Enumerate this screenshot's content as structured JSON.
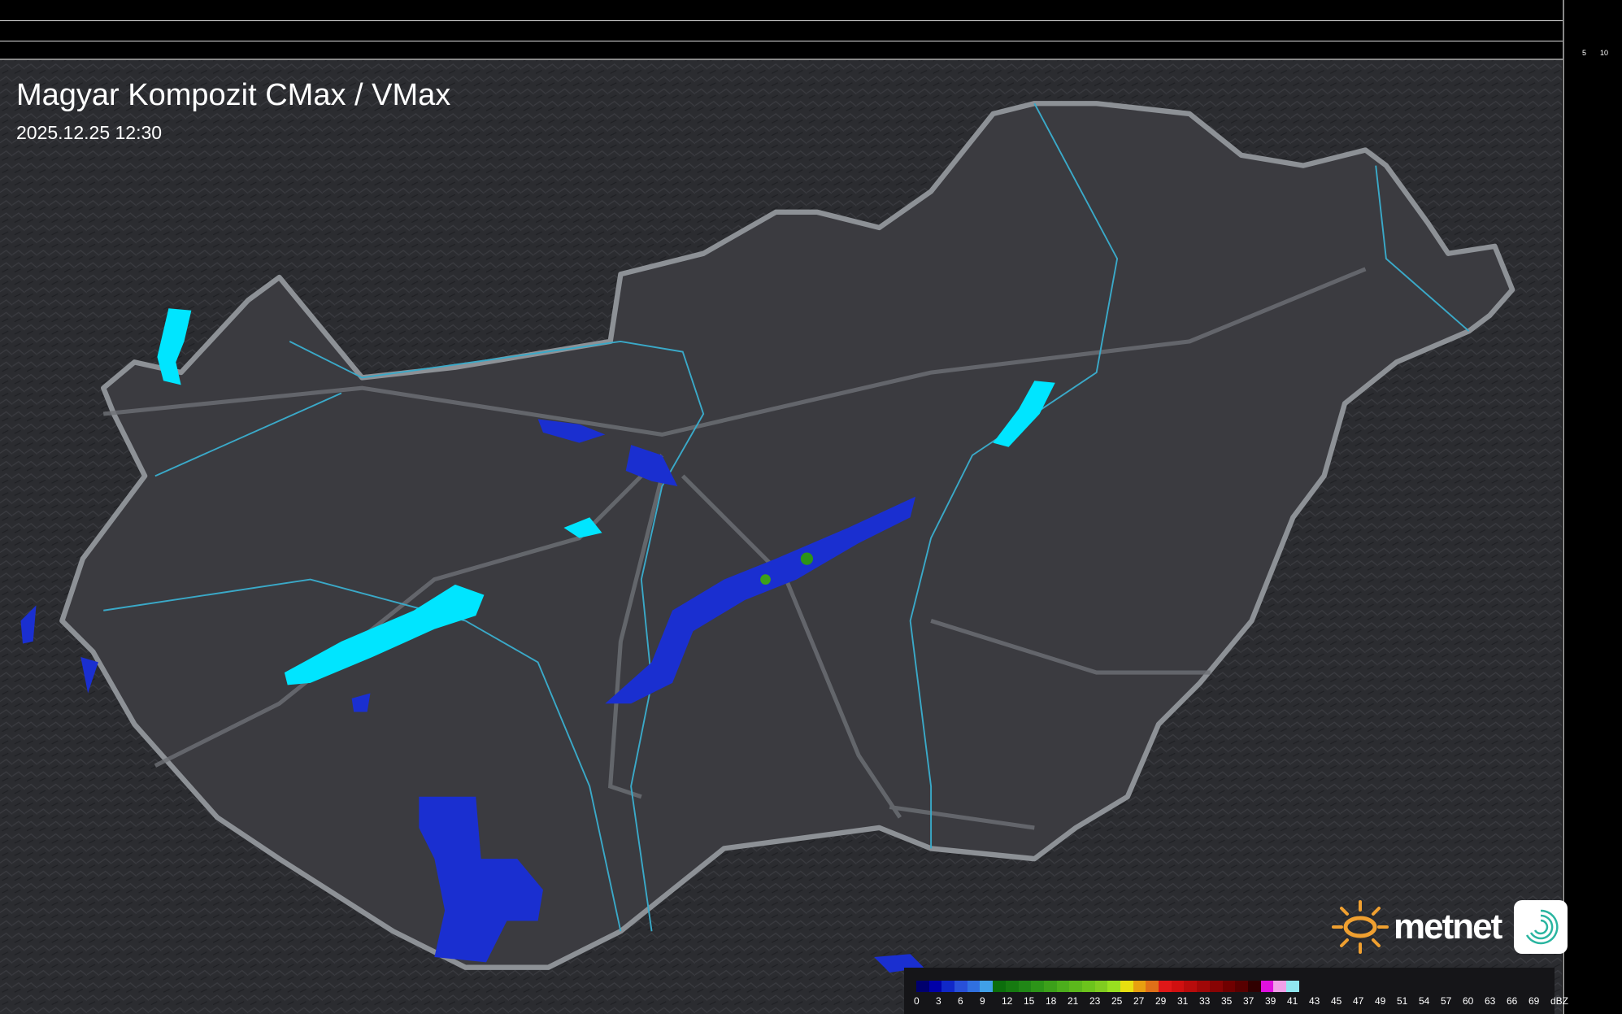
{
  "header": {
    "title": "Magyar Kompozit CMax / VMax",
    "timestamp": "2025.12.25 12:30"
  },
  "axes": {
    "top_ticks": [
      "10",
      "5"
    ],
    "side_ticks": [
      "5",
      "10"
    ]
  },
  "logo": {
    "text": "metnet",
    "sun_color": "#f0a030",
    "icon": "swirl-app-icon"
  },
  "colors": {
    "background": "#2e2f33",
    "country": "#3a3a3e",
    "border": "#8a8f94",
    "lake": "#00e5ff",
    "river": "#3aa9c8",
    "rain_weak": "#1a2fd0"
  },
  "legend": {
    "unit": "dBZ",
    "labels": [
      "0",
      "3",
      "6",
      "9",
      "12",
      "15",
      "18",
      "21",
      "23",
      "25",
      "27",
      "29",
      "31",
      "33",
      "35",
      "37",
      "39",
      "41",
      "43",
      "45",
      "47",
      "49",
      "51",
      "54",
      "57",
      "60",
      "63",
      "66",
      "69"
    ],
    "colors": [
      "#00006e",
      "#0000a8",
      "#1028c8",
      "#2850d8",
      "#3070e0",
      "#40a0e8",
      "#0c6e0c",
      "#167a10",
      "#208616",
      "#2c9418",
      "#3ca01a",
      "#4cae1c",
      "#5cb81c",
      "#6cc41c",
      "#80cc20",
      "#98e020",
      "#e8e010",
      "#e8a010",
      "#e07018",
      "#e01818",
      "#d01010",
      "#b80c0c",
      "#a00808",
      "#880404",
      "#700000",
      "#580000",
      "#300000",
      "#e010e0",
      "#f0a0e8",
      "#90e8f0"
    ]
  }
}
